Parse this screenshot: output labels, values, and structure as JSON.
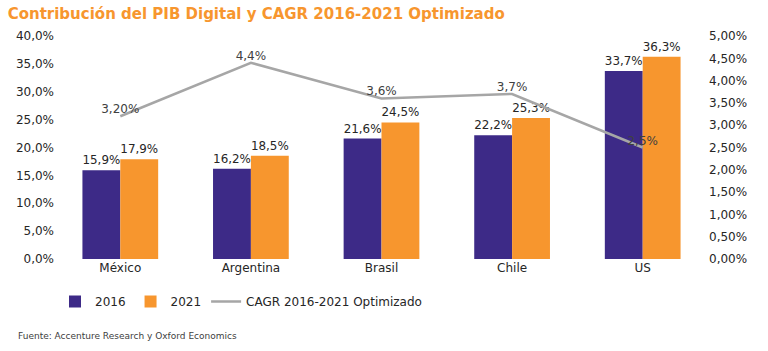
{
  "chart_data": {
    "type": "bar",
    "title": "Contribución del PIB Digital y CAGR 2016-2021 Optimizado",
    "source": "Fuente: Accenture Research y Oxford Economics",
    "categories": [
      "México",
      "Argentina",
      "Brasil",
      "Chile",
      "US"
    ],
    "series": [
      {
        "name": "2016",
        "color": "#3d2a87",
        "values": [
          15.9,
          16.2,
          21.6,
          22.2,
          33.7
        ],
        "value_labels": [
          "15,9%",
          "16,2%",
          "21,6%",
          "22,2%",
          "33,7%"
        ]
      },
      {
        "name": "2021",
        "color": "#f7962e",
        "values": [
          17.9,
          18.5,
          24.5,
          25.3,
          36.3
        ],
        "value_labels": [
          "17,9%",
          "18,5%",
          "24,5%",
          "25,3%",
          "36,3%"
        ]
      },
      {
        "name": "CAGR 2016-2021 Optimizado",
        "type": "line",
        "axis": "y2",
        "color": "#a6a6a6",
        "values": [
          3.2,
          4.4,
          3.6,
          3.7,
          2.5
        ],
        "value_labels": [
          "3,20%",
          "4,4%",
          "3,6%",
          "3,7%",
          "2,5%"
        ]
      }
    ],
    "ylim": [
      0,
      40
    ],
    "yticks": [
      {
        "value": 0,
        "label": "0,0%"
      },
      {
        "value": 5,
        "label": "5,0%"
      },
      {
        "value": 10,
        "label": "10,0%"
      },
      {
        "value": 15,
        "label": "15,0%"
      },
      {
        "value": 20,
        "label": "20,0%"
      },
      {
        "value": 25,
        "label": "25,0%"
      },
      {
        "value": 30,
        "label": "30,0%"
      },
      {
        "value": 35,
        "label": "35,0%"
      },
      {
        "value": 40,
        "label": "40,0%"
      }
    ],
    "y2lim": [
      0,
      5
    ],
    "y2ticks": [
      {
        "value": 0,
        "label": "0,00%"
      },
      {
        "value": 0.5,
        "label": "0,50%"
      },
      {
        "value": 1,
        "label": "1,00%"
      },
      {
        "value": 1.5,
        "label": "1,50%"
      },
      {
        "value": 2,
        "label": "2,00%"
      },
      {
        "value": 2.5,
        "label": "2,50%"
      },
      {
        "value": 3,
        "label": "3,00%"
      },
      {
        "value": 3.5,
        "label": "3,50%"
      },
      {
        "value": 4,
        "label": "4,00%"
      },
      {
        "value": 4.5,
        "label": "4,50%"
      },
      {
        "value": 5,
        "label": "5,00%"
      }
    ],
    "data_labels": true,
    "grid": false,
    "legend": "bottom"
  }
}
